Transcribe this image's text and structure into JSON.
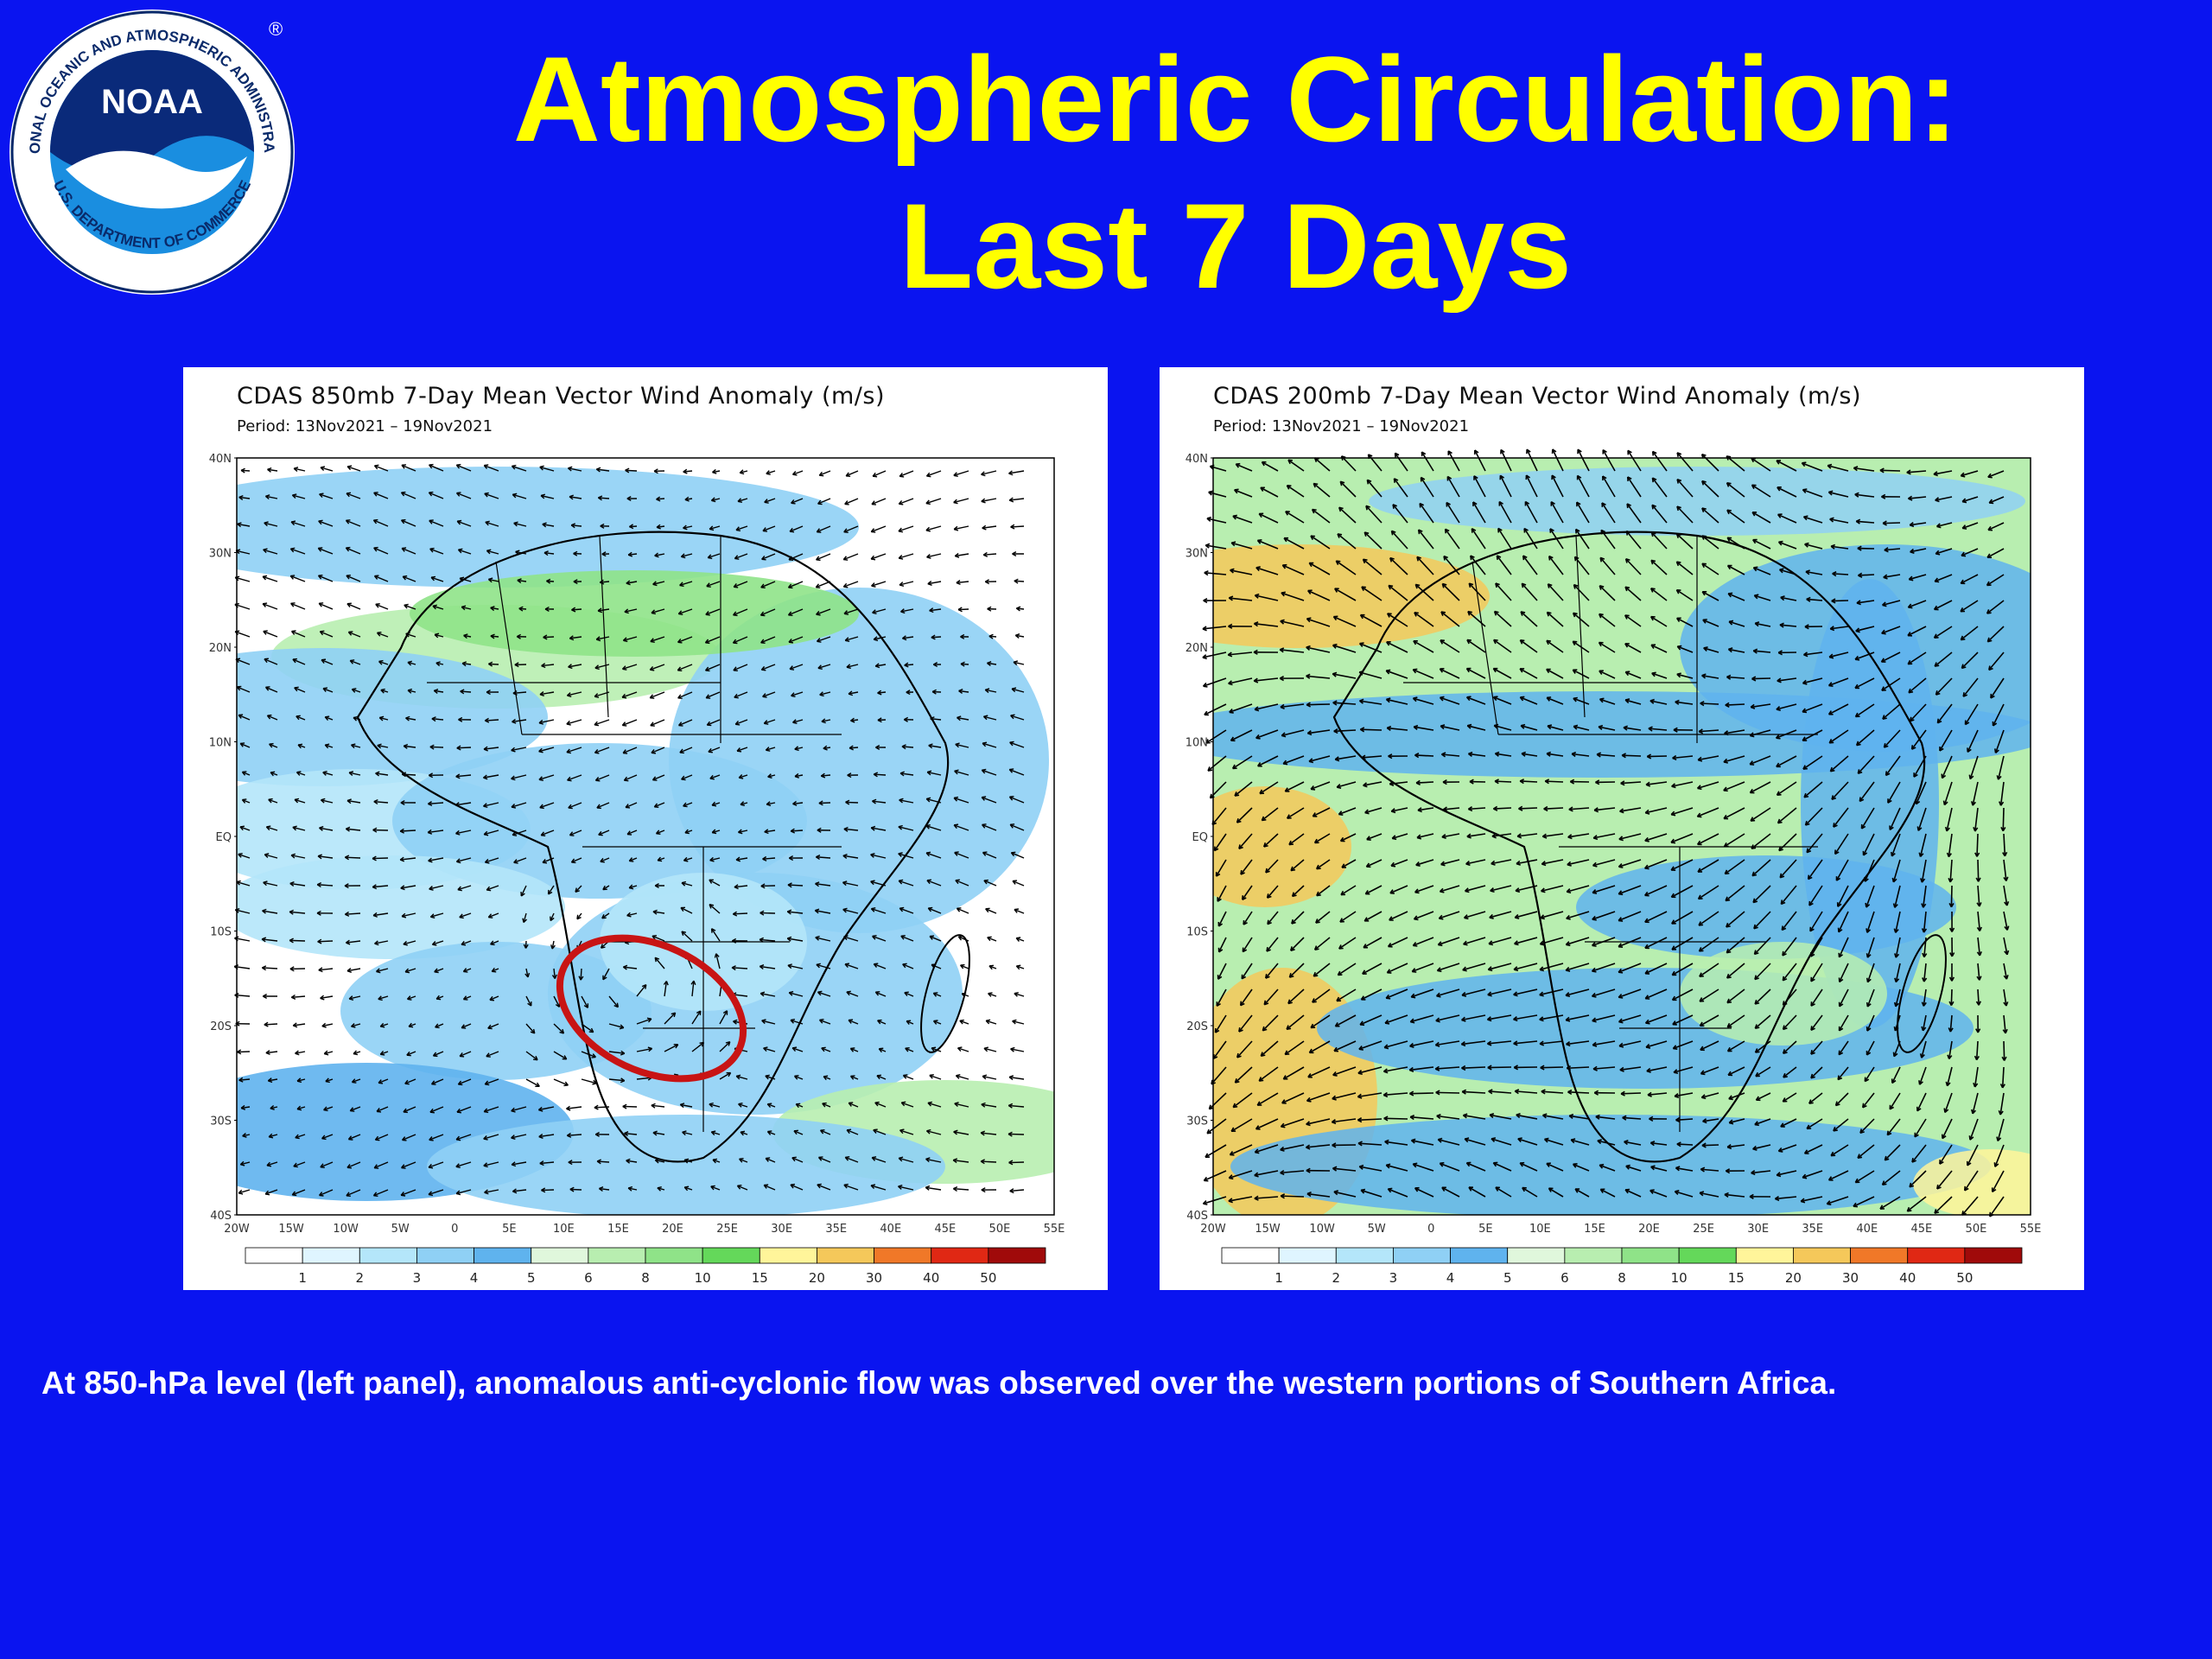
{
  "slide": {
    "title_line1": "Atmospheric Circulation:",
    "title_line2": "Last 7 Days",
    "caption": "At 850-hPa level (left panel), anomalous anti-cyclonic flow was observed over the western portions of Southern Africa."
  },
  "logo": {
    "text": "NOAA",
    "ring_text": "NATIONAL OCEANIC AND ATMOSPHERIC ADMINISTRATION",
    "ring_bottom": "U.S. DEPARTMENT OF COMMERCE",
    "registered": "®"
  },
  "panels": [
    {
      "title": "CDAS 850mb 7-Day Mean Vector Wind Anomaly (m/s)",
      "period": "Period: 13Nov2021 – 19Nov2021",
      "highlight": "anti-cyclonic circulation circle"
    },
    {
      "title": "CDAS 200mb 7-Day Mean Vector Wind Anomaly (m/s)",
      "period": "Period: 13Nov2021 – 19Nov2021"
    }
  ],
  "axes": {
    "lat_labels": [
      "40N",
      "30N",
      "20N",
      "10N",
      "EQ",
      "10S",
      "20S",
      "30S",
      "40S"
    ],
    "lon_labels": [
      "20W",
      "15W",
      "10W",
      "5W",
      "0",
      "5E",
      "10E",
      "15E",
      "20E",
      "25E",
      "30E",
      "35E",
      "40E",
      "45E",
      "50E",
      "55E"
    ]
  },
  "colorbar": {
    "labels": [
      "1",
      "2",
      "3",
      "4",
      "5",
      "6",
      "8",
      "10",
      "15",
      "20",
      "30",
      "40",
      "50"
    ],
    "colors": [
      "#ffffff",
      "#dff5ff",
      "#b4e6fa",
      "#8fd0f5",
      "#5fb3ee",
      "#e0f7dc",
      "#b8eeb0",
      "#8fe388",
      "#64d85a",
      "#fff59a",
      "#f5c85a",
      "#f07828",
      "#e02814",
      "#a00a0a"
    ]
  }
}
